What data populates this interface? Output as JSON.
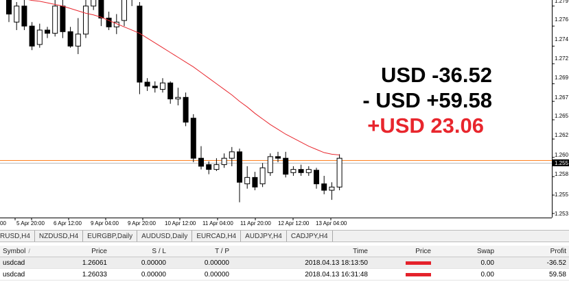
{
  "overlay": {
    "line1": "USD -36.52",
    "line2": "- USD +59.58",
    "line3": "+USD 23.06",
    "line3_color": "#e8262d"
  },
  "chart_data": {
    "type": "candlestick",
    "price_axis_labels": [
      "1.279",
      "1.276",
      "1.274",
      "1.272",
      "1.269",
      "1.267",
      "1.265",
      "1.262",
      "1.260",
      "1.255",
      "1.258",
      "1.255",
      "1.253"
    ],
    "price_ticks": [
      1.279,
      1.2765,
      1.274,
      1.2718,
      1.2693,
      1.2671,
      1.2648,
      1.2624,
      1.2601,
      1.2577,
      1.2554,
      1.2531
    ],
    "time_labels": [
      "00",
      "5 Apr 20:00",
      "6 Apr 12:00",
      "9 Apr 04:00",
      "9 Apr 20:00",
      "10 Apr 12:00",
      "11 Apr 04:00",
      "11 Apr 20:00",
      "12 Apr 12:00",
      "13 Apr 04:00"
    ],
    "current_price": "1.255",
    "level_price": "1.260",
    "candles": [
      [
        1.28,
        1.278,
        1.2805,
        1.277
      ],
      [
        1.277,
        1.279,
        1.2795,
        1.276
      ],
      [
        1.279,
        1.2765,
        1.2798,
        1.276
      ],
      [
        1.2765,
        1.274,
        1.277,
        1.2735
      ],
      [
        1.2742,
        1.276,
        1.2768,
        1.2738
      ],
      [
        1.276,
        1.2756,
        1.2764,
        1.275
      ],
      [
        1.2756,
        1.279,
        1.28,
        1.2752
      ],
      [
        1.279,
        1.2758,
        1.2798,
        1.275
      ],
      [
        1.2758,
        1.274,
        1.2764,
        1.2738
      ],
      [
        1.274,
        1.2755,
        1.2775,
        1.273
      ],
      [
        1.2755,
        1.279,
        1.28,
        1.275
      ],
      [
        1.279,
        1.28,
        1.281,
        1.2785
      ],
      [
        1.28,
        1.2775,
        1.2805,
        1.2765
      ],
      [
        1.2775,
        1.2764,
        1.2783,
        1.276
      ],
      [
        1.2764,
        1.277,
        1.278,
        1.2755
      ],
      [
        1.2772,
        1.28,
        1.281,
        1.2765
      ],
      [
        1.28,
        1.28,
        1.281,
        1.279
      ],
      [
        1.279,
        1.2695,
        1.2795,
        1.268
      ],
      [
        1.2695,
        1.269,
        1.27,
        1.2684
      ],
      [
        1.269,
        1.2688,
        1.2696,
        1.2682
      ],
      [
        1.2686,
        1.2694,
        1.27,
        1.2682
      ],
      [
        1.2694,
        1.2674,
        1.2696,
        1.2668
      ],
      [
        1.2674,
        1.2676,
        1.2688,
        1.2666
      ],
      [
        1.2676,
        1.2645,
        1.2682,
        1.264
      ],
      [
        1.265,
        1.26,
        1.2655,
        1.2595
      ],
      [
        1.26,
        1.259,
        1.2615,
        1.2586
      ],
      [
        1.2592,
        1.2586,
        1.2596,
        1.258
      ],
      [
        1.2586,
        1.2592,
        1.26,
        1.2584
      ],
      [
        1.2592,
        1.26,
        1.2606,
        1.2588
      ],
      [
        1.26,
        1.2608,
        1.2614,
        1.259
      ],
      [
        1.2608,
        1.257,
        1.2612,
        1.2545
      ],
      [
        1.2568,
        1.2576,
        1.259,
        1.2562
      ],
      [
        1.2576,
        1.2564,
        1.2583,
        1.256
      ],
      [
        1.2568,
        1.2588,
        1.2594,
        1.2564
      ],
      [
        1.2582,
        1.2602,
        1.2606,
        1.2578
      ],
      [
        1.2602,
        1.26,
        1.2608,
        1.2595
      ],
      [
        1.26,
        1.258,
        1.2608,
        1.2576
      ],
      [
        1.2582,
        1.2586,
        1.259,
        1.2578
      ],
      [
        1.2586,
        1.2582,
        1.2592,
        1.2578
      ],
      [
        1.2582,
        1.2586,
        1.259,
        1.2578
      ],
      [
        1.2585,
        1.2568,
        1.2588,
        1.2562
      ],
      [
        1.2568,
        1.256,
        1.2578,
        1.2555
      ],
      [
        1.256,
        1.2564,
        1.257,
        1.2548
      ],
      [
        1.2564,
        1.26,
        1.2605,
        1.256
      ]
    ],
    "ma": [
      1.2802,
      1.2801,
      1.2799,
      1.2797,
      1.2796,
      1.2794,
      1.2792,
      1.279,
      1.2787,
      1.2784,
      1.2781,
      1.2779,
      1.2776,
      1.2772,
      1.2768,
      1.2764,
      1.276,
      1.2756,
      1.275,
      1.2744,
      1.2738,
      1.2732,
      1.2726,
      1.272,
      1.2714,
      1.2707,
      1.27,
      1.2693,
      1.2686,
      1.2679,
      1.2671,
      1.2664,
      1.2656,
      1.2649,
      1.2642,
      1.2636,
      1.263,
      1.2625,
      1.262,
      1.2615,
      1.2611,
      1.2607,
      1.2605,
      1.2604
    ]
  },
  "tabs": [
    "RUSD,H4",
    "NZDUSD,H4",
    "EURGBP,Daily",
    "AUDUSD,Daily",
    "EURCAD,H4",
    "AUDJPY,H4",
    "CADJPY,H4"
  ],
  "table": {
    "headers": {
      "symbol": "Symbol",
      "price": "Price",
      "sl": "S / L",
      "tp": "T / P",
      "time": "Time",
      "iprice": "Price",
      "swap": "Swap",
      "profit": "Profit"
    },
    "rows": [
      {
        "symbol": "usdcad",
        "price": "1.26061",
        "sl": "0.00000",
        "tp": "0.00000",
        "time": "2018.04.13 18:13:50",
        "swap": "0.00",
        "profit": "-36.52"
      },
      {
        "symbol": "usdcad",
        "price": "1.26033",
        "sl": "0.00000",
        "tp": "0.00000",
        "time": "2018.04.13 16:31:48",
        "swap": "0.00",
        "profit": "59.58"
      }
    ]
  },
  "colors": {
    "ma_line": "#e8262d",
    "level_line": "#ff7f1e",
    "price_line": "#b8b8b8",
    "bar": "#e4222b"
  }
}
